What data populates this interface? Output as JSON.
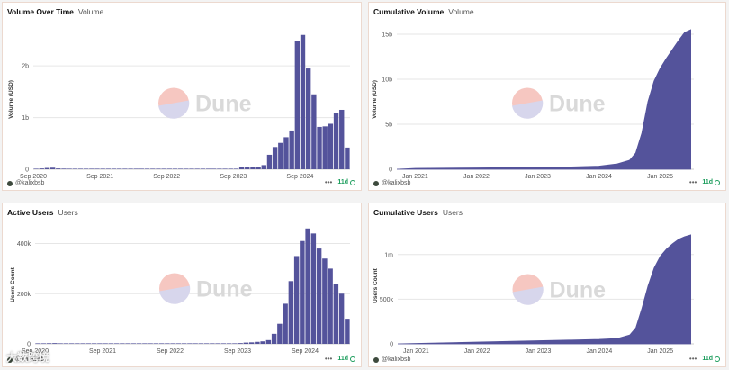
{
  "brand": {
    "logo_text": "Dune",
    "bar_color": "#54539b",
    "accent_green": "#1a9c5b"
  },
  "watermark": "大数跨境",
  "panels": [
    {
      "title": "Volume Over Time",
      "subtitle": "Volume",
      "author": "@kalixbsb",
      "age": "11d"
    },
    {
      "title": "Cumulative Volume",
      "subtitle": "Volume",
      "author": "@kalixbsb",
      "age": "11d"
    },
    {
      "title": "Active Users",
      "subtitle": "Users",
      "author": "@kalixbsb",
      "age": "11d"
    },
    {
      "title": "Cumulative Users",
      "subtitle": "Users",
      "author": "@kalixbsb",
      "age": "11d"
    }
  ],
  "chart_data": [
    {
      "type": "bar",
      "ylabel": "Volume (USD)",
      "ylim": [
        0,
        2700000000
      ],
      "yticks": [
        0,
        1000000000,
        2000000000
      ],
      "ytick_labels": [
        "0",
        "1b",
        "2b"
      ],
      "xlim": [
        0,
        50
      ],
      "xticks": [
        0,
        12,
        24,
        36,
        48
      ],
      "xtick_labels": [
        "Sep 2020",
        "Sep 2021",
        "Sep 2022",
        "Sep 2023",
        "Sep 2024"
      ],
      "grid": true,
      "values": [
        0,
        15000000,
        25000000,
        30000000,
        15000000,
        12000000,
        10000000,
        10000000,
        8000000,
        8000000,
        7000000,
        7000000,
        6000000,
        6000000,
        5000000,
        5000000,
        5000000,
        5000000,
        5000000,
        5000000,
        5000000,
        5000000,
        5000000,
        5000000,
        5000000,
        5000000,
        5000000,
        5000000,
        5000000,
        5000000,
        5000000,
        5000000,
        5000000,
        5000000,
        5000000,
        5000000,
        10000000,
        45000000,
        50000000,
        45000000,
        50000000,
        80000000,
        280000000,
        430000000,
        510000000,
        620000000,
        750000000,
        2480000000,
        2600000000,
        1950000000,
        1450000000,
        820000000,
        830000000,
        880000000,
        1080000000,
        1150000000,
        420000000
      ]
    },
    {
      "type": "area",
      "ylabel": "Volume (USD)",
      "ylim": [
        0,
        15500000000
      ],
      "yticks": [
        0,
        5000000000,
        10000000000,
        15000000000
      ],
      "ytick_labels": [
        "0",
        "5b",
        "10b",
        "15b"
      ],
      "xlim": [
        2020.7,
        2025.55
      ],
      "xticks": [
        2021,
        2022,
        2023,
        2024,
        2025
      ],
      "xtick_labels": [
        "Jan 2021",
        "Jan 2022",
        "Jan 2023",
        "Jan 2024",
        "Jan 2025"
      ],
      "grid": true,
      "points": [
        [
          2020.7,
          0
        ],
        [
          2021.0,
          100000000
        ],
        [
          2022.0,
          150000000
        ],
        [
          2023.0,
          200000000
        ],
        [
          2023.5,
          250000000
        ],
        [
          2024.0,
          350000000
        ],
        [
          2024.3,
          600000000
        ],
        [
          2024.5,
          1000000000
        ],
        [
          2024.6,
          1800000000
        ],
        [
          2024.7,
          4000000000
        ],
        [
          2024.8,
          7500000000
        ],
        [
          2024.9,
          9800000000
        ],
        [
          2025.0,
          11200000000
        ],
        [
          2025.1,
          12300000000
        ],
        [
          2025.2,
          13300000000
        ],
        [
          2025.3,
          14300000000
        ],
        [
          2025.4,
          15200000000
        ],
        [
          2025.5,
          15500000000
        ]
      ]
    },
    {
      "type": "bar",
      "ylabel": "Users Count",
      "ylim": [
        0,
        470000
      ],
      "yticks": [
        0,
        200000,
        400000
      ],
      "ytick_labels": [
        "0",
        "200k",
        "400k"
      ],
      "xlim": [
        0,
        50
      ],
      "xticks": [
        0,
        12,
        24,
        36,
        48
      ],
      "xtick_labels": [
        "Sep 2020",
        "Sep 2021",
        "Sep 2022",
        "Sep 2023",
        "Sep 2024"
      ],
      "grid": true,
      "values": [
        0,
        1500,
        2500,
        3000,
        2000,
        2000,
        1500,
        1500,
        1500,
        1500,
        1500,
        1500,
        2000,
        2000,
        2000,
        2000,
        2000,
        2000,
        2000,
        2000,
        2000,
        2000,
        2000,
        2000,
        2000,
        2000,
        2000,
        2000,
        2000,
        2000,
        2000,
        2000,
        2000,
        2000,
        2000,
        2000,
        3000,
        5000,
        6000,
        8000,
        10000,
        15000,
        40000,
        80000,
        160000,
        250000,
        350000,
        410000,
        460000,
        440000,
        380000,
        340000,
        300000,
        240000,
        200000,
        100000
      ]
    },
    {
      "type": "area",
      "ylabel": "Users Count",
      "ylim": [
        0,
        1300000
      ],
      "yticks": [
        0,
        500000,
        1000000
      ],
      "ytick_labels": [
        "0",
        "500k",
        "1m"
      ],
      "xlim": [
        2020.7,
        2025.55
      ],
      "xticks": [
        2021,
        2022,
        2023,
        2024,
        2025
      ],
      "xtick_labels": [
        "Jan 2021",
        "Jan 2022",
        "Jan 2023",
        "Jan 2024",
        "Jan 2025"
      ],
      "grid": true,
      "points": [
        [
          2020.7,
          0
        ],
        [
          2021.0,
          5000
        ],
        [
          2022.0,
          20000
        ],
        [
          2023.0,
          35000
        ],
        [
          2023.5,
          42000
        ],
        [
          2024.0,
          50000
        ],
        [
          2024.3,
          60000
        ],
        [
          2024.5,
          100000
        ],
        [
          2024.6,
          180000
        ],
        [
          2024.7,
          400000
        ],
        [
          2024.8,
          650000
        ],
        [
          2024.9,
          850000
        ],
        [
          2025.0,
          980000
        ],
        [
          2025.1,
          1060000
        ],
        [
          2025.2,
          1120000
        ],
        [
          2025.3,
          1170000
        ],
        [
          2025.4,
          1200000
        ],
        [
          2025.5,
          1220000
        ]
      ]
    }
  ]
}
